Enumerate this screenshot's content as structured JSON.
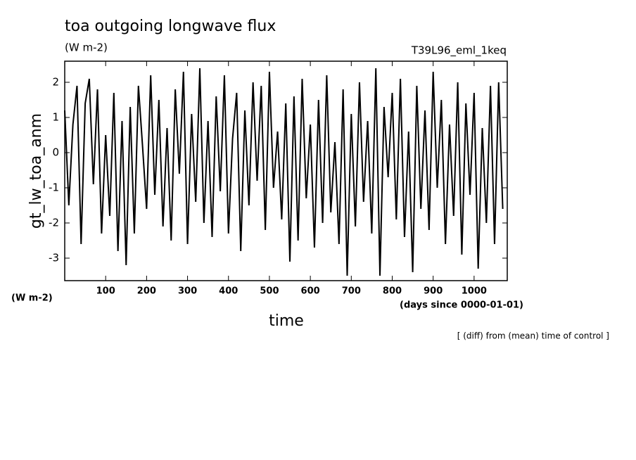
{
  "chart_data": {
    "type": "line",
    "title": "toa outgoing longwave flux",
    "subtitle": "(W m-2)",
    "run_label": "T39L96_eml_1keq",
    "y_label": "gt_lw_toa_anm",
    "y_units": "(W m-2)",
    "x_label": "time",
    "x_units": "(days since 0000-01-01)",
    "note": "[ (diff) from (mean) time of control ]",
    "x": [
      0,
      10,
      20,
      30,
      40,
      50,
      60,
      70,
      80,
      90,
      100,
      110,
      120,
      130,
      140,
      150,
      160,
      170,
      180,
      190,
      200,
      210,
      220,
      230,
      240,
      250,
      260,
      270,
      280,
      290,
      300,
      310,
      320,
      330,
      340,
      350,
      360,
      370,
      380,
      390,
      400,
      410,
      420,
      430,
      440,
      450,
      460,
      470,
      480,
      490,
      500,
      510,
      520,
      530,
      540,
      550,
      560,
      570,
      580,
      590,
      600,
      610,
      620,
      630,
      640,
      650,
      660,
      670,
      680,
      690,
      700,
      710,
      720,
      730,
      740,
      750,
      760,
      770,
      780,
      790,
      800,
      810,
      820,
      830,
      840,
      850,
      860,
      870,
      880,
      890,
      900,
      910,
      920,
      930,
      940,
      950,
      960,
      970,
      980,
      990,
      1000,
      1010,
      1020,
      1030,
      1040,
      1050,
      1060,
      1070
    ],
    "series": [
      {
        "name": "gt_lw_toa_anm",
        "color": "#000000",
        "values": [
          1.2,
          -1.5,
          0.8,
          1.9,
          -2.6,
          1.4,
          2.1,
          -0.9,
          1.8,
          -2.3,
          0.5,
          -1.8,
          1.7,
          -2.8,
          0.9,
          -3.2,
          1.3,
          -2.3,
          1.9,
          0.2,
          -1.6,
          2.2,
          -1.2,
          1.5,
          -2.1,
          0.7,
          -2.5,
          1.8,
          -0.6,
          2.3,
          -2.6,
          1.1,
          -1.4,
          2.4,
          -2.0,
          0.9,
          -2.4,
          1.6,
          -1.1,
          2.2,
          -2.3,
          0.4,
          1.7,
          -2.8,
          1.2,
          -1.5,
          2.0,
          -0.8,
          1.9,
          -2.2,
          2.3,
          -1.0,
          0.6,
          -1.9,
          1.4,
          -3.1,
          1.6,
          -2.5,
          2.1,
          -1.3,
          0.8,
          -2.7,
          1.5,
          -2.0,
          2.2,
          -1.7,
          0.3,
          -2.6,
          1.8,
          -3.5,
          1.1,
          -2.1,
          2.0,
          -1.4,
          0.9,
          -2.3,
          2.4,
          -3.5,
          1.3,
          -0.7,
          1.7,
          -1.9,
          2.1,
          -2.4,
          0.6,
          -3.4,
          1.9,
          -1.6,
          1.2,
          -2.2,
          2.3,
          -1.0,
          1.5,
          -2.6,
          0.8,
          -1.8,
          2.0,
          -2.9,
          1.4,
          -1.2,
          1.7,
          -3.3,
          0.7,
          -2.0,
          1.9,
          -2.6,
          2.0,
          -1.6
        ]
      }
    ],
    "xlim": [
      0,
      1081
    ],
    "ylim": [
      -3.64,
      2.6
    ],
    "xticks": [
      100,
      200,
      300,
      400,
      500,
      600,
      700,
      800,
      900,
      1000
    ],
    "yticks": [
      -3,
      -2,
      -1,
      0,
      1,
      2
    ]
  }
}
